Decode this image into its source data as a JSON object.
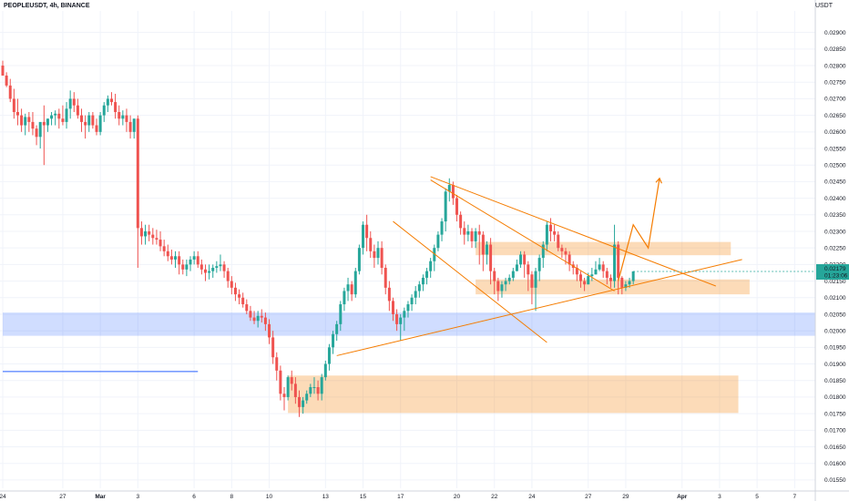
{
  "chart_data": {
    "type": "candlestick",
    "title": "PEOPLEUSDT, 4h, BINANCE",
    "currency": "USDT",
    "ylim": [
      0.01525,
      0.02965
    ],
    "price_ticks": [
      "0.02900",
      "0.02850",
      "0.02800",
      "0.02750",
      "0.02700",
      "0.02650",
      "0.02600",
      "0.02550",
      "0.02500",
      "0.02450",
      "0.02400",
      "0.02350",
      "0.02300",
      "0.02250",
      "0.02200",
      "0.02150",
      "0.02100",
      "0.02050",
      "0.02000",
      "0.01950",
      "0.01900",
      "0.01850",
      "0.01800",
      "0.01750",
      "0.01700",
      "0.01650",
      "0.01600",
      "0.01550"
    ],
    "time_ticks": [
      "24",
      "27",
      "Mar",
      "3",
      "6",
      "8",
      "10",
      "13",
      "15",
      "17",
      "20",
      "22",
      "24",
      "27",
      "29",
      "Apr",
      "3",
      "5",
      "7"
    ],
    "time_tick_index": [
      0,
      16,
      26,
      36,
      51,
      61,
      71,
      86,
      96,
      106,
      121,
      131,
      141,
      156,
      166,
      181,
      191,
      201,
      211
    ],
    "last_price": "0.02179",
    "countdown": "01:23:06",
    "candles": {
      "open": [
        0.028,
        0.0277,
        0.0274,
        0.027,
        0.0266,
        0.0265,
        0.0262,
        0.02645,
        0.0263,
        0.0261,
        0.02585,
        0.0263,
        0.0262,
        0.0264,
        0.0265,
        0.02655,
        0.0264,
        0.0263,
        0.0267,
        0.027,
        0.0268,
        0.0265,
        0.0263,
        0.0262,
        0.0265,
        0.0262,
        0.026,
        0.0265,
        0.0268,
        0.027,
        0.0269,
        0.0266,
        0.0264,
        0.0265,
        0.0263,
        0.026,
        0.0264,
        0.0231,
        0.02285,
        0.023,
        0.0229,
        0.0228,
        0.02275,
        0.02255,
        0.0224,
        0.02225,
        0.02215,
        0.02225,
        0.022,
        0.02185,
        0.022,
        0.02215,
        0.02225,
        0.022,
        0.02185,
        0.02175,
        0.0218,
        0.0219,
        0.02195,
        0.022,
        0.0218,
        0.0215,
        0.0213,
        0.0211,
        0.021,
        0.0208,
        0.0206,
        0.0204,
        0.0203,
        0.02045,
        0.0204,
        0.0202,
        0.0198,
        0.0192,
        0.0188,
        0.0181,
        0.018,
        0.0186,
        0.0184,
        0.018,
        0.0177,
        0.0179,
        0.0181,
        0.0183,
        0.0183,
        0.0181,
        0.0186,
        0.019,
        0.0195,
        0.0199,
        0.0202,
        0.0208,
        0.0212,
        0.0214,
        0.0211,
        0.0218,
        0.0225,
        0.0232,
        0.0228,
        0.0224,
        0.0222,
        0.0225,
        0.0219,
        0.0213,
        0.0209,
        0.0205,
        0.0202,
        0.0204,
        0.0206,
        0.0208,
        0.021,
        0.0212,
        0.0214,
        0.0216,
        0.0218,
        0.0221,
        0.0225,
        0.0229,
        0.0233,
        0.0242,
        0.0244,
        0.024,
        0.0235,
        0.0231,
        0.0229,
        0.023,
        0.0227,
        0.023,
        0.0229,
        0.0223,
        0.0226,
        0.0218,
        0.0215,
        0.0212,
        0.0214,
        0.0215,
        0.0216,
        0.0218,
        0.022,
        0.0223,
        0.022,
        0.0217,
        0.0213,
        0.0218,
        0.0222,
        0.0226,
        0.0232,
        0.023,
        0.0229,
        0.0225,
        0.0224,
        0.0223,
        0.022,
        0.0219,
        0.0217,
        0.0215,
        0.0214,
        0.02165,
        0.0217,
        0.02185,
        0.022,
        0.0218,
        0.0216,
        0.0215,
        0.0226,
        0.0216,
        0.0213,
        0.0214,
        0.0215
      ],
      "high": [
        0.02815,
        0.0278,
        0.0276,
        0.0273,
        0.027,
        0.0267,
        0.02655,
        0.0266,
        0.0266,
        0.0262,
        0.026,
        0.0268,
        0.0264,
        0.0266,
        0.02665,
        0.0267,
        0.0268,
        0.0269,
        0.02725,
        0.0272,
        0.027,
        0.0267,
        0.0265,
        0.0266,
        0.0266,
        0.0264,
        0.0266,
        0.0269,
        0.0271,
        0.0272,
        0.02715,
        0.0268,
        0.02665,
        0.0267,
        0.0265,
        0.0264,
        0.0265,
        0.0233,
        0.0232,
        0.0232,
        0.0231,
        0.02305,
        0.023,
        0.02275,
        0.0226,
        0.02245,
        0.0224,
        0.0224,
        0.02215,
        0.02215,
        0.02225,
        0.0224,
        0.0224,
        0.02215,
        0.022,
        0.022,
        0.022,
        0.0221,
        0.0223,
        0.0221,
        0.0219,
        0.02165,
        0.02145,
        0.02125,
        0.02115,
        0.02095,
        0.02075,
        0.0206,
        0.0206,
        0.02065,
        0.02055,
        0.02035,
        0.02,
        0.01935,
        0.01895,
        0.0183,
        0.01865,
        0.0188,
        0.0186,
        0.0182,
        0.018,
        0.0182,
        0.0184,
        0.0186,
        0.0185,
        0.0187,
        0.0191,
        0.0196,
        0.02,
        0.0203,
        0.0209,
        0.0213,
        0.0216,
        0.0215,
        0.0219,
        0.0226,
        0.0233,
        0.0235,
        0.023,
        0.0226,
        0.0227,
        0.0227,
        0.022,
        0.0215,
        0.021,
        0.02065,
        0.0205,
        0.0207,
        0.0209,
        0.0211,
        0.02135,
        0.0215,
        0.0217,
        0.0219,
        0.0222,
        0.0226,
        0.023,
        0.0234,
        0.0243,
        0.0246,
        0.0245,
        0.0241,
        0.0236,
        0.0233,
        0.0232,
        0.0231,
        0.0231,
        0.0232,
        0.023,
        0.0227,
        0.0228,
        0.0219,
        0.0216,
        0.0215,
        0.0216,
        0.0217,
        0.0219,
        0.02215,
        0.0224,
        0.0224,
        0.0221,
        0.0218,
        0.0219,
        0.0223,
        0.0227,
        0.0233,
        0.0234,
        0.0232,
        0.023,
        0.0226,
        0.0225,
        0.0224,
        0.0221,
        0.022,
        0.0218,
        0.0216,
        0.02175,
        0.0219,
        0.0221,
        0.0222,
        0.0221,
        0.0219,
        0.0217,
        0.0232,
        0.0227,
        0.02165,
        0.0215,
        0.0216,
        0.0218
      ],
      "low": [
        0.0277,
        0.02735,
        0.0269,
        0.0264,
        0.0262,
        0.026,
        0.0259,
        0.026,
        0.0259,
        0.0256,
        0.0255,
        0.025,
        0.026,
        0.0262,
        0.0262,
        0.0261,
        0.0262,
        0.0261,
        0.0264,
        0.0266,
        0.0264,
        0.026,
        0.0258,
        0.026,
        0.0261,
        0.0259,
        0.0259,
        0.0263,
        0.0266,
        0.0268,
        0.0264,
        0.0262,
        0.0262,
        0.026,
        0.0258,
        0.0258,
        0.0219,
        0.0226,
        0.0226,
        0.0227,
        0.0226,
        0.0226,
        0.0224,
        0.02225,
        0.0221,
        0.022,
        0.0219,
        0.0217,
        0.0217,
        0.02165,
        0.0218,
        0.022,
        0.0219,
        0.0217,
        0.0215,
        0.02155,
        0.0216,
        0.02175,
        0.0218,
        0.0216,
        0.0213,
        0.0211,
        0.0209,
        0.0208,
        0.0207,
        0.0205,
        0.0203,
        0.0202,
        0.0201,
        0.02025,
        0.02,
        0.0196,
        0.019,
        0.0185,
        0.0179,
        0.0176,
        0.0179,
        0.0182,
        0.0178,
        0.0174,
        0.0175,
        0.0178,
        0.018,
        0.0181,
        0.0179,
        0.0179,
        0.0185,
        0.0188,
        0.0193,
        0.0197,
        0.02,
        0.0206,
        0.0209,
        0.0209,
        0.021,
        0.0217,
        0.0223,
        0.0224,
        0.0222,
        0.0219,
        0.022,
        0.0217,
        0.0211,
        0.0206,
        0.0203,
        0.02,
        0.0197,
        0.02,
        0.0204,
        0.0206,
        0.0208,
        0.021,
        0.0212,
        0.0214,
        0.0216,
        0.0218,
        0.0224,
        0.0227,
        0.023,
        0.0239,
        0.0238,
        0.0233,
        0.0229,
        0.0226,
        0.0227,
        0.0225,
        0.0225,
        0.022,
        0.0218,
        0.022,
        0.0214,
        0.0211,
        0.0209,
        0.021,
        0.0212,
        0.0214,
        0.0215,
        0.0218,
        0.0219,
        0.0216,
        0.0212,
        0.0208,
        0.0206,
        0.0215,
        0.0219,
        0.0224,
        0.0227,
        0.0227,
        0.0224,
        0.0222,
        0.022,
        0.0218,
        0.0217,
        0.0215,
        0.0213,
        0.0212,
        0.0214,
        0.0215,
        0.0217,
        0.0218,
        0.0216,
        0.0214,
        0.0213,
        0.0213,
        0.0211,
        0.0211,
        0.0212,
        0.0213,
        0.0214
      ],
      "close": [
        0.0277,
        0.0274,
        0.027,
        0.0266,
        0.0265,
        0.0262,
        0.02645,
        0.0263,
        0.0261,
        0.02585,
        0.0263,
        0.0262,
        0.0264,
        0.0265,
        0.02655,
        0.0264,
        0.0263,
        0.0267,
        0.027,
        0.0268,
        0.0265,
        0.0263,
        0.0262,
        0.0265,
        0.0262,
        0.026,
        0.0265,
        0.0268,
        0.027,
        0.0269,
        0.0266,
        0.0264,
        0.0265,
        0.0263,
        0.026,
        0.0264,
        0.0231,
        0.02285,
        0.023,
        0.0229,
        0.0228,
        0.02275,
        0.02255,
        0.0224,
        0.02225,
        0.02215,
        0.02225,
        0.022,
        0.02185,
        0.022,
        0.02215,
        0.02225,
        0.022,
        0.02185,
        0.02175,
        0.0218,
        0.0219,
        0.02195,
        0.022,
        0.0218,
        0.0215,
        0.0213,
        0.0211,
        0.021,
        0.0208,
        0.0206,
        0.0204,
        0.0203,
        0.02045,
        0.0204,
        0.0202,
        0.0198,
        0.0192,
        0.0188,
        0.0181,
        0.018,
        0.0186,
        0.0184,
        0.018,
        0.0177,
        0.0179,
        0.0181,
        0.0183,
        0.0183,
        0.0181,
        0.0186,
        0.019,
        0.0195,
        0.0199,
        0.0202,
        0.0208,
        0.0212,
        0.0214,
        0.0211,
        0.0218,
        0.0225,
        0.0232,
        0.0228,
        0.0224,
        0.0222,
        0.0225,
        0.0219,
        0.0213,
        0.0209,
        0.0205,
        0.0202,
        0.0204,
        0.0206,
        0.0208,
        0.021,
        0.0212,
        0.0214,
        0.0216,
        0.0218,
        0.0221,
        0.0225,
        0.0229,
        0.0233,
        0.0242,
        0.0244,
        0.024,
        0.0235,
        0.0231,
        0.0229,
        0.023,
        0.0227,
        0.023,
        0.0229,
        0.0223,
        0.0226,
        0.0218,
        0.0215,
        0.0212,
        0.0214,
        0.0215,
        0.0216,
        0.0218,
        0.022,
        0.0223,
        0.022,
        0.0217,
        0.0213,
        0.0218,
        0.0222,
        0.0226,
        0.0232,
        0.023,
        0.0229,
        0.0225,
        0.0224,
        0.0223,
        0.022,
        0.0219,
        0.0217,
        0.0215,
        0.0214,
        0.02165,
        0.0217,
        0.02185,
        0.022,
        0.0218,
        0.0216,
        0.0215,
        0.0226,
        0.0216,
        0.0213,
        0.0214,
        0.0215,
        0.02179
      ]
    },
    "zones": [
      {
        "name": "support-zone-blue",
        "color": "#2962ff",
        "x_start": 0,
        "x_end": 218,
        "y_low": 0.01985,
        "y_high": 0.02055
      },
      {
        "name": "demand-zone-low",
        "color": "#f57c00",
        "x_start": 76,
        "x_end": 196,
        "y_low": 0.01752,
        "y_high": 0.01865
      },
      {
        "name": "zone-mid",
        "color": "#f57c00",
        "x_start": 126,
        "x_end": 199,
        "y_low": 0.0211,
        "y_high": 0.02155
      },
      {
        "name": "zone-upper",
        "color": "#f57c00",
        "x_start": 126,
        "x_end": 194,
        "y_low": 0.02228,
        "y_high": 0.02268
      }
    ],
    "lines": [
      {
        "name": "line-blue-short",
        "color": "#2962ff",
        "x1": 0,
        "y1": 0.01877,
        "x2": 52,
        "y2": 0.01877
      },
      {
        "name": "line-triangle-upper",
        "color": "#f57c00",
        "x1": 114,
        "y1": 0.02465,
        "x2": 190,
        "y2": 0.02135
      },
      {
        "name": "line-triangle-lower",
        "color": "#f57c00",
        "x1": 89,
        "y1": 0.01925,
        "x2": 197,
        "y2": 0.02215
      },
      {
        "name": "line-channel-upper",
        "color": "#f57c00",
        "x1": 114,
        "y1": 0.02455,
        "x2": 163,
        "y2": 0.0212
      },
      {
        "name": "line-channel-lower",
        "color": "#f57c00",
        "x1": 104,
        "y1": 0.0233,
        "x2": 145,
        "y2": 0.01965
      },
      {
        "name": "line-projection",
        "color": "#f57c00",
        "points": [
          [
            164,
            0.0215
          ],
          [
            168,
            0.0232
          ],
          [
            172,
            0.0225
          ],
          [
            175,
            0.0246
          ]
        ]
      }
    ],
    "candle_colors": {
      "up": "#26a69a",
      "down": "#ef5350"
    },
    "last_price_color": "#26a69a"
  }
}
